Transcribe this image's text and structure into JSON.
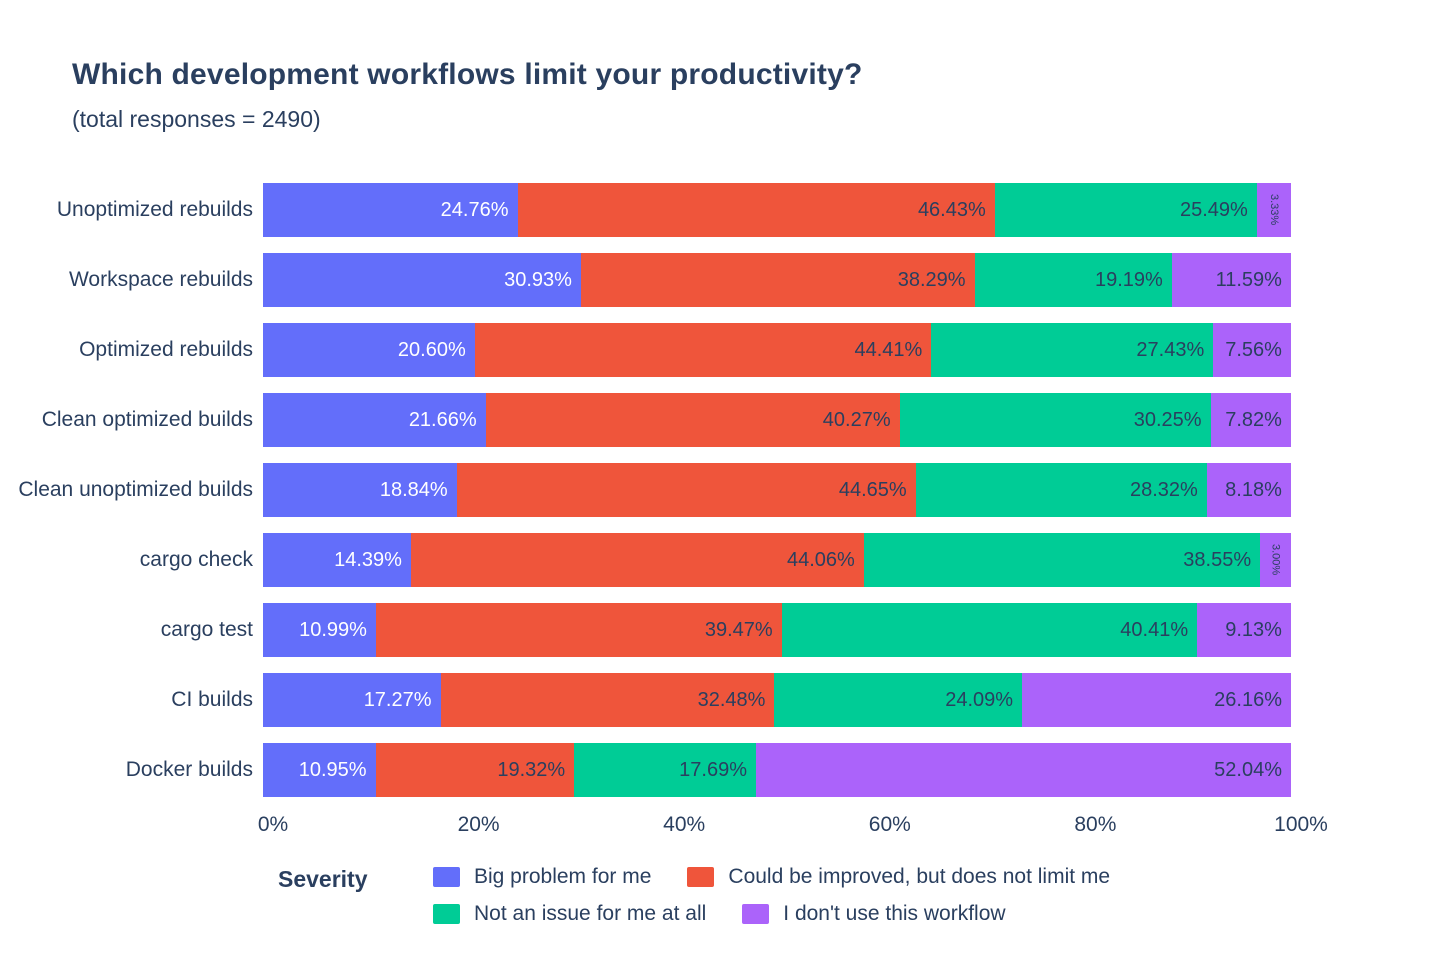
{
  "title": "Which development workflows limit your productivity?",
  "subtitle": "(total responses = 2490)",
  "legend_title": "Severity",
  "text_color": "#2a3f5f",
  "chart_data": {
    "type": "bar",
    "orientation": "horizontal",
    "stacked": true,
    "title": "Which development workflows limit your productivity?",
    "subtitle": "(total responses = 2490)",
    "xlabel": "",
    "ylabel": "",
    "xlim": [
      0,
      100
    ],
    "grid": false,
    "legend_position": "bottom",
    "legend_title": "Severity",
    "x_ticks": [
      "0%",
      "20%",
      "40%",
      "60%",
      "80%",
      "100%"
    ],
    "categories": [
      "Unoptimized rebuilds",
      "Workspace rebuilds",
      "Optimized rebuilds",
      "Clean optimized builds",
      "Clean unoptimized builds",
      "cargo check",
      "cargo test",
      "CI builds",
      "Docker builds"
    ],
    "series": [
      {
        "name": "Big problem for me",
        "color": "#636efa",
        "label_color": "#ffffff",
        "values": [
          24.76,
          30.93,
          20.6,
          21.66,
          18.84,
          14.39,
          10.99,
          17.27,
          10.95
        ]
      },
      {
        "name": "Could be improved, but does not limit me",
        "color": "#ef553b",
        "label_color": "#2a3f5f",
        "values": [
          46.43,
          38.29,
          44.41,
          40.27,
          44.65,
          44.06,
          39.47,
          32.48,
          19.32
        ]
      },
      {
        "name": "Not an issue for me at all",
        "color": "#00cc96",
        "label_color": "#2a3f5f",
        "values": [
          25.49,
          19.19,
          27.43,
          30.25,
          28.32,
          38.55,
          40.41,
          24.09,
          17.69
        ]
      },
      {
        "name": "I don't use this workflow",
        "color": "#ab63fa",
        "label_color": "#2a3f5f",
        "values": [
          3.33,
          11.59,
          7.56,
          7.82,
          8.18,
          3.0,
          9.13,
          26.16,
          52.04
        ]
      }
    ]
  }
}
